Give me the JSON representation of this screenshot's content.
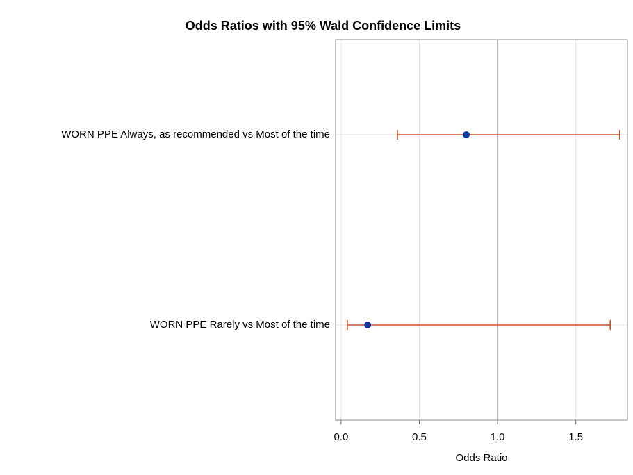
{
  "chart_data": {
    "type": "forest",
    "title": "Odds Ratios with 95% Wald Confidence Limits",
    "x_label": "Odds Ratio",
    "categories": [
      "WORN  PPE Always, as recommended vs Most of the time",
      "WORN  PPE Rarely vs Most of the time"
    ],
    "values": [
      0.8,
      0.17
    ],
    "lower": [
      0.36,
      0.04
    ],
    "upper": [
      1.78,
      1.72
    ],
    "point_color": "#13399b",
    "bar_color": "#c9532c",
    "xlim": [
      -0.035,
      1.83
    ],
    "xticks": [
      {
        "value": 0,
        "label": "0.0"
      },
      {
        "value": 0.5,
        "label": "0.5"
      },
      {
        "value": 1,
        "label": "1.0"
      },
      {
        "value": 1.5,
        "label": "1.5"
      }
    ],
    "reference_line": 1,
    "grid": true
  }
}
